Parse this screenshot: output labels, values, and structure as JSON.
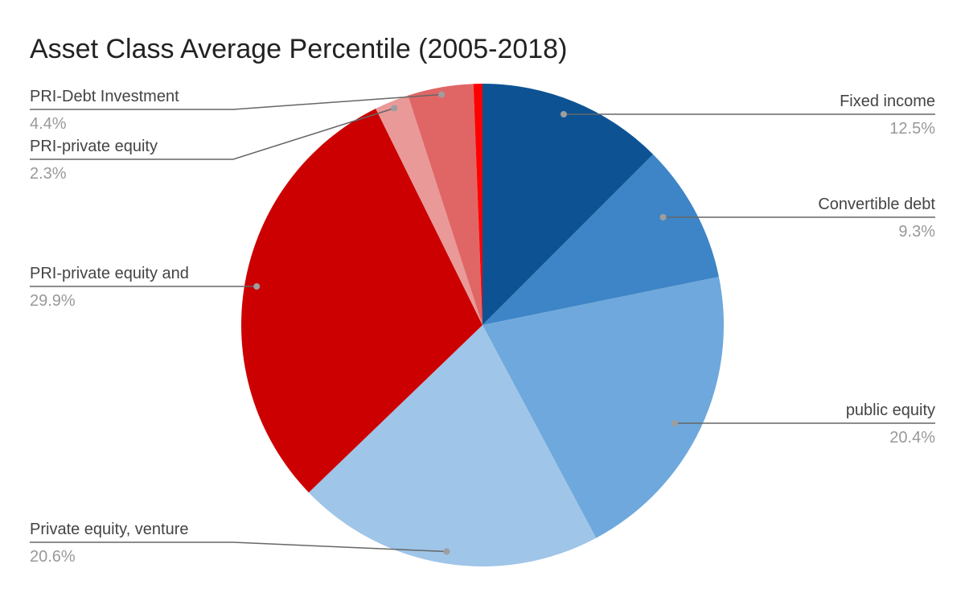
{
  "chart_data": {
    "type": "pie",
    "title": "Asset Class Average Percentile (2005-2018)",
    "slices": [
      {
        "name": "Fixed income",
        "value": 12.5,
        "label": "12.5%",
        "color": "#0d5394"
      },
      {
        "name": "Convertible debt",
        "value": 9.3,
        "label": "9.3%",
        "color": "#3d85c6"
      },
      {
        "name": "public equity",
        "value": 20.4,
        "label": "20.4%",
        "color": "#6fa8dc"
      },
      {
        "name": "Private equity, venture",
        "value": 20.6,
        "label": "20.6%",
        "color": "#9fc5e8"
      },
      {
        "name": "PRI-private equity and",
        "value": 29.9,
        "label": "29.9%",
        "color": "#cc0000"
      },
      {
        "name": "PRI-private equity",
        "value": 2.3,
        "label": "2.3%",
        "color": "#ea9999"
      },
      {
        "name": "PRI-Debt Investment",
        "value": 4.4,
        "label": "4.4%",
        "color": "#e06666"
      },
      {
        "name": "",
        "value": 0.6,
        "label": "",
        "color": "#ff0000"
      }
    ]
  }
}
